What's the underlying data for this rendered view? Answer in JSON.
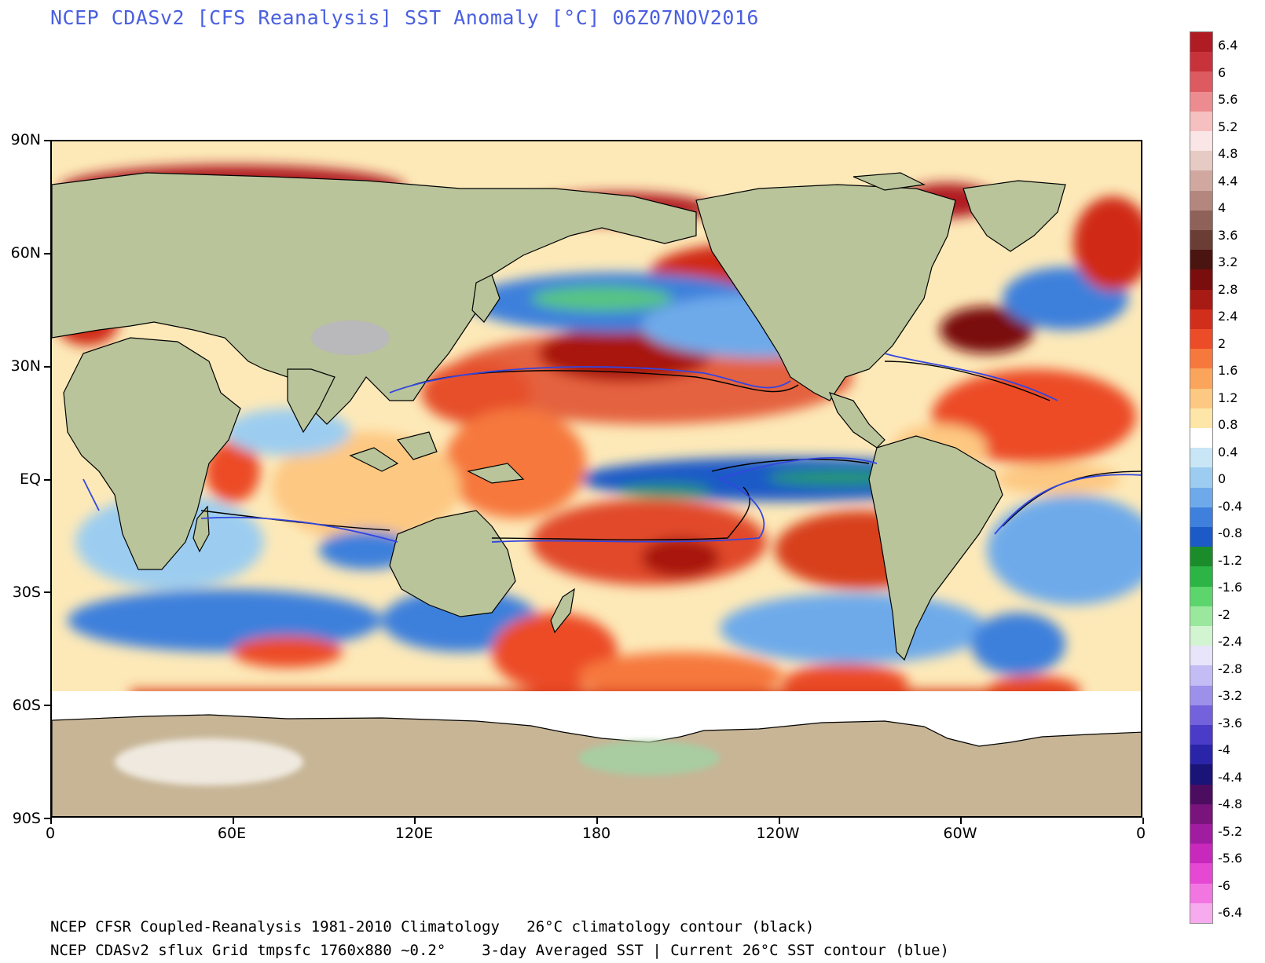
{
  "title": "NCEP CDASv2 [CFS Reanalysis] SST Anomaly [°C] 06Z07NOV2016",
  "y_axis_labels": [
    "90N",
    "60N",
    "30N",
    "EQ",
    "30S",
    "60S",
    "90S"
  ],
  "x_axis_labels": [
    "0",
    "60E",
    "120E",
    "180",
    "120W",
    "60W",
    "0"
  ],
  "footer": {
    "line1_left": "NCEP CFSR Coupled-Reanalysis 1981-2010 Climatology",
    "line1_right": "26°C climatology contour (black)",
    "line2_left": "NCEP CDASv2 sflux Grid tmpsfc 1760x880 ~0.2°",
    "line2_right": "3-day Averaged SST | Current 26°C SST contour (blue)"
  },
  "colorbar": {
    "labels": [
      "6.4",
      "6",
      "5.6",
      "5.2",
      "4.8",
      "4.4",
      "4",
      "3.6",
      "3.2",
      "2.8",
      "2.4",
      "2",
      "1.6",
      "1.2",
      "0.8",
      "0.4",
      "0",
      "-0.4",
      "-0.8",
      "-1.2",
      "-1.6",
      "-2",
      "-2.4",
      "-2.8",
      "-3.2",
      "-3.6",
      "-4",
      "-4.4",
      "-4.8",
      "-5.2",
      "-5.6",
      "-6",
      "-6.4"
    ],
    "colors": [
      "#b01c24",
      "#c8323a",
      "#dc5a60",
      "#ec8c90",
      "#f6c0c0",
      "#fae6e6",
      "#e6cac4",
      "#d0a8a0",
      "#b4877e",
      "#8e6258",
      "#6a3e34",
      "#4a1410",
      "#7a0e0e",
      "#a81a14",
      "#d22e1c",
      "#ec4c28",
      "#f6783c",
      "#fba55c",
      "#fdc882",
      "#fee6a8",
      "#ffffff",
      "#c8e6f6",
      "#9ccdf0",
      "#6eaaea",
      "#3e80dc",
      "#1c5ac8",
      "#1a8c2a",
      "#2cb444",
      "#5cd66c",
      "#9ae89e",
      "#d2f4d0",
      "#e8e4fa",
      "#c4bcf4",
      "#9c90ea",
      "#7462dc",
      "#4a3cc8",
      "#2a24a8",
      "#1a1478",
      "#4c0c60",
      "#78147c",
      "#a01ca0",
      "#c828bc",
      "#e648d4",
      "#f276e2",
      "#f8aaee"
    ]
  },
  "legend_note": "colorbar and map colors match the original figure palette",
  "map_colors": {
    "land": "#b9c49a",
    "land_high": "#9e9a7c",
    "ice": "#ffffff",
    "antarctica": "#c7b596",
    "clim_contour": "#000000",
    "current_contour": "#3346e0"
  }
}
